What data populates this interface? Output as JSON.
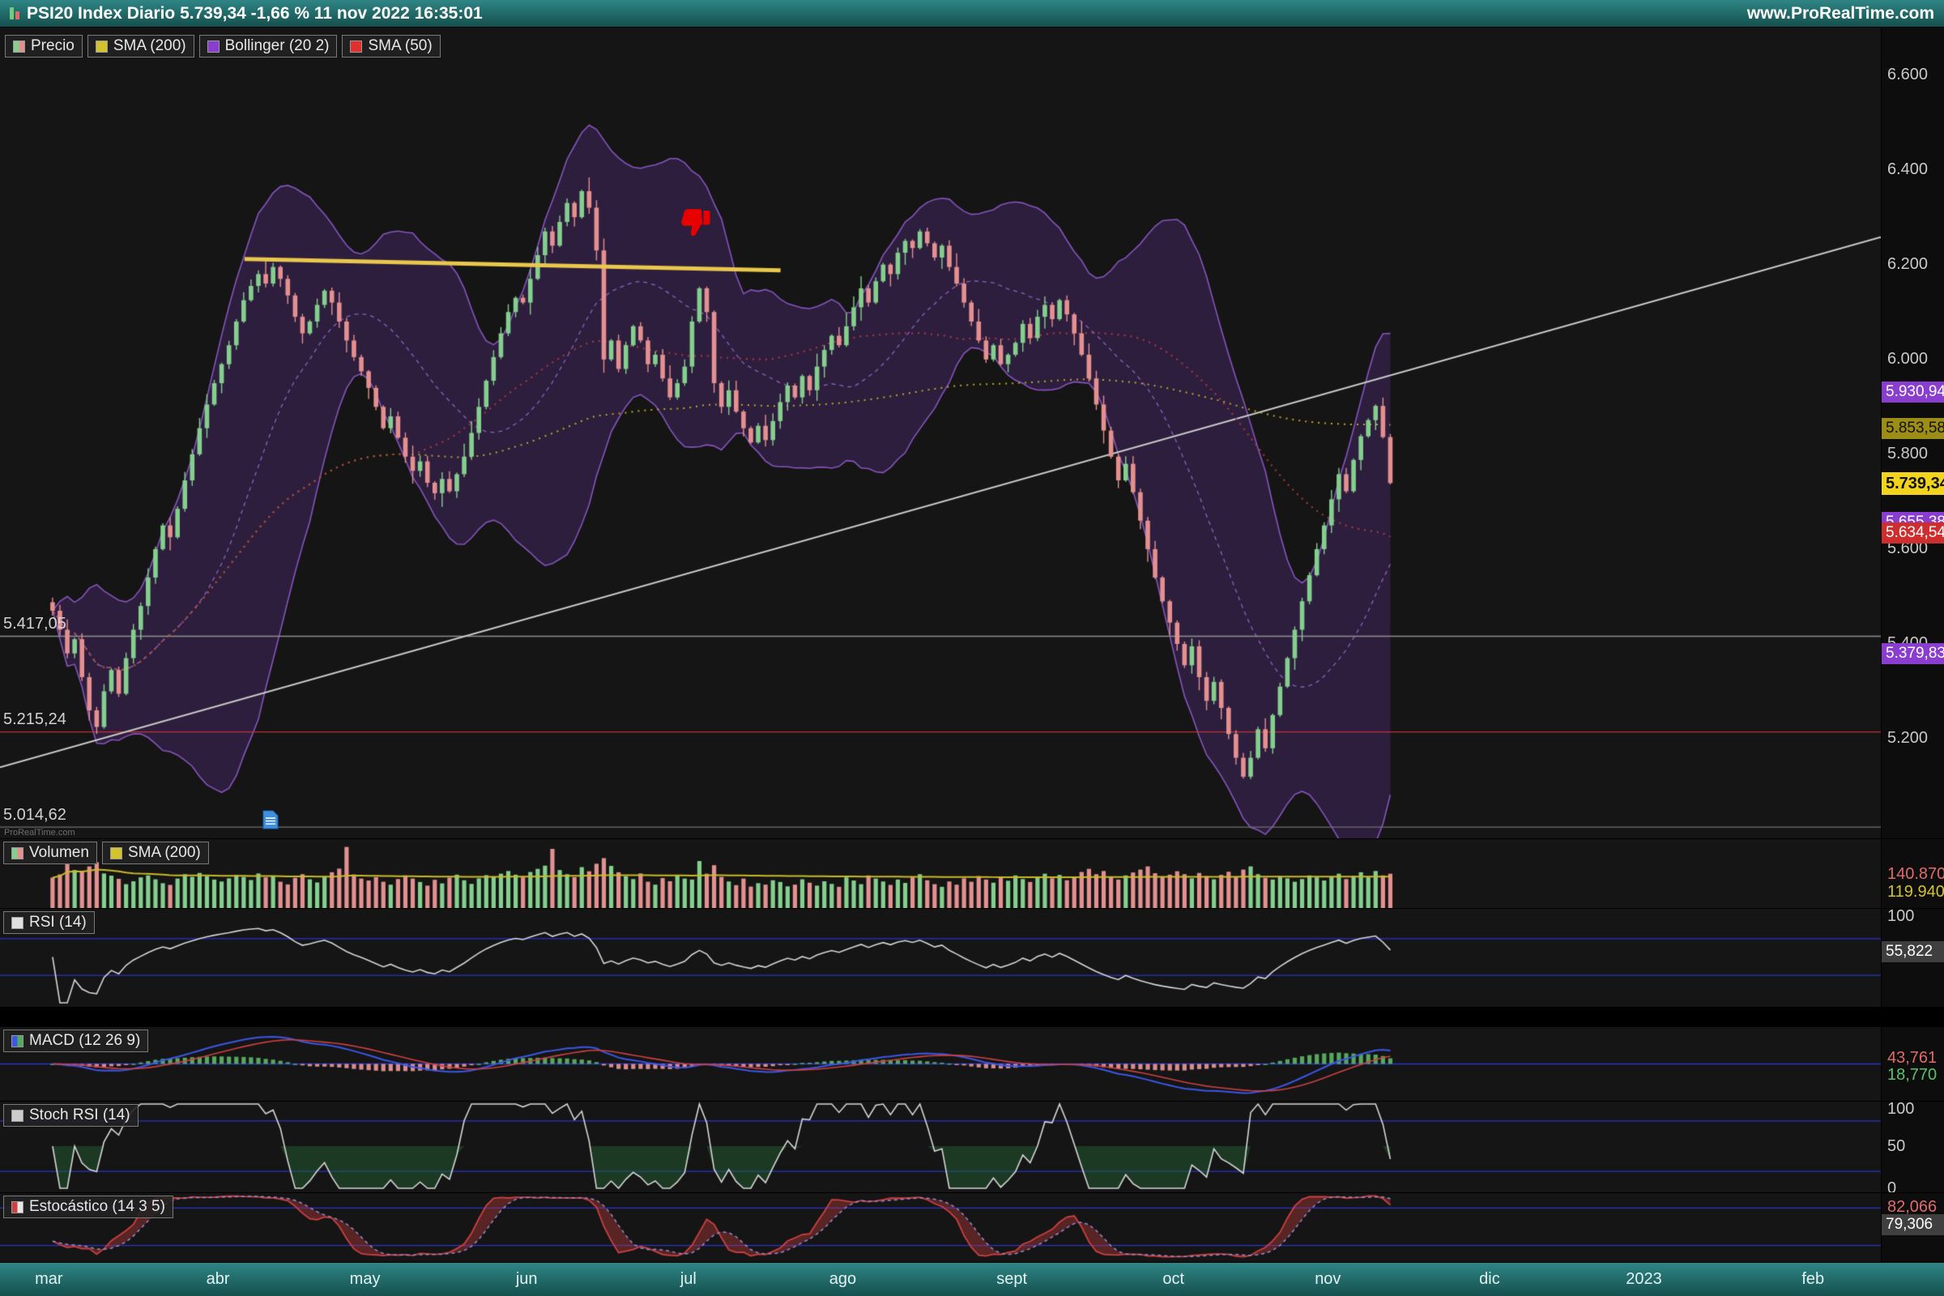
{
  "header": {
    "title": "PSI20 Index Diario 5.739,34 -1,66 % 11 nov 2022 16:35:01",
    "website": "www.ProRealTime.com"
  },
  "main": {
    "watermark": "ProRealTime.com",
    "legend": [
      {
        "label": "Precio",
        "sw": [
          "#84cf8e",
          "#e49090"
        ]
      },
      {
        "label": "SMA (200)",
        "sw": [
          "#d3c32e"
        ]
      },
      {
        "label": "Bollinger (20 2)",
        "sw": [
          "#8a3ecf"
        ]
      },
      {
        "label": "SMA (50)",
        "sw": [
          "#e03030"
        ]
      }
    ],
    "y_ticks": [
      {
        "t": "6.600",
        "v": 6600
      },
      {
        "t": "6.400",
        "v": 6400
      },
      {
        "t": "6.200",
        "v": 6200
      },
      {
        "t": "6.000",
        "v": 6000
      },
      {
        "t": "5.800",
        "v": 5800
      },
      {
        "t": "5.600",
        "v": 5600
      },
      {
        "t": "5.400",
        "v": 5400
      },
      {
        "t": "5.200",
        "v": 5200
      }
    ],
    "badges": [
      {
        "t": "5.930,94",
        "v": 5930.94,
        "bg": "#8a3ecf",
        "fg": "#ffffff"
      },
      {
        "t": "5.853,58",
        "v": 5853.58,
        "bg": "#9c8d17",
        "fg": "#101010"
      },
      {
        "t": "5.739,34",
        "v": 5739.34,
        "bg": "#f2d41c",
        "fg": "#101010",
        "big": true
      },
      {
        "t": "5.655,38",
        "v": 5655.38,
        "bg": "#8a3ecf",
        "fg": "#ffffff"
      },
      {
        "t": "5.634,54",
        "v": 5634.54,
        "bg": "#cf2e2e",
        "fg": "#ffffff"
      },
      {
        "t": "5.379,83",
        "v": 5379.83,
        "bg": "#8a3ecf",
        "fg": "#ffffff"
      }
    ],
    "level_lines": [
      {
        "t": "5.417,05",
        "v": 5417.05,
        "line": "#8f8f8f"
      },
      {
        "t": "5.215,24",
        "v": 5215.24,
        "line": "#c23232"
      },
      {
        "t": "5.014,62",
        "v": 5014.62,
        "line": "#707070"
      }
    ],
    "trendlines": [
      {
        "f1": 0.0,
        "p1": 5140,
        "f2": 1.0,
        "p2": 6258,
        "color": "#c9cdc9",
        "w": 2,
        "front": false
      },
      {
        "f1": 0.13,
        "p1": 6212,
        "f2": 0.415,
        "p2": 6188,
        "color": "#e9c84d",
        "w": 5,
        "front": true
      }
    ],
    "thumbs_down": {
      "f": 0.369,
      "price": 6290
    },
    "note_icon": {
      "f": 0.144,
      "price": 5030
    }
  },
  "panels": {
    "volume": {
      "legend": [
        {
          "label": "Volumen",
          "sw": [
            "#84cf8e",
            "#e49090"
          ]
        },
        {
          "label": "SMA (200)",
          "sw": [
            "#d3c32e"
          ]
        }
      ],
      "ylim": [
        0,
        263000
      ],
      "labels": [
        {
          "t": "140.870",
          "v": 140870,
          "color": "#e06b6b"
        },
        {
          "t": "119.940",
          "v": 119940,
          "color": "#d3c32e"
        }
      ]
    },
    "rsi": {
      "legend": [
        {
          "label": "RSI (14)",
          "sw": [
            "#e0e0e0"
          ]
        }
      ],
      "levels": [
        30,
        70
      ],
      "ticks": [
        {
          "t": "100",
          "v": 100
        }
      ],
      "badge": {
        "t": "55,822",
        "v": 55.822
      }
    },
    "macd": {
      "legend": [
        {
          "label": "MACD (12 26 9)",
          "sw": [
            "#3a57e8",
            "#56a85c"
          ]
        }
      ],
      "labels": [
        {
          "t": "43,761",
          "v": 43.761,
          "color": "#e06b6b"
        },
        {
          "t": "18,770",
          "v": 18.77,
          "color": "#56c46a"
        }
      ]
    },
    "stoch_rsi": {
      "legend": [
        {
          "label": "Stoch RSI (14)",
          "sw": [
            "#cccccc"
          ]
        }
      ],
      "levels": [
        20,
        80
      ],
      "ticks": [
        {
          "t": "100",
          "v": 100
        },
        {
          "t": "50",
          "v": 50
        },
        {
          "t": "0",
          "v": 0
        }
      ]
    },
    "stochastic": {
      "legend": [
        {
          "label": "Estocástico (14 3 5)",
          "sw": [
            "#cf4040",
            "#e8e8e8"
          ]
        }
      ],
      "levels": [
        20,
        80
      ],
      "labels": [
        {
          "t": "82,066",
          "v": 82.066,
          "color": "#e06b6b"
        }
      ],
      "badge": {
        "t": "79,306",
        "v": 79.306
      }
    }
  },
  "time_axis": {
    "months": [
      {
        "label": "mar",
        "day": 0
      },
      {
        "label": "abr",
        "day": 23
      },
      {
        "label": "may",
        "day": 43
      },
      {
        "label": "jun",
        "day": 65
      },
      {
        "label": "jul",
        "day": 87
      },
      {
        "label": "ago",
        "day": 108
      },
      {
        "label": "sept",
        "day": 131
      },
      {
        "label": "oct",
        "day": 153
      },
      {
        "label": "nov",
        "day": 174
      },
      {
        "label": "dic",
        "day": 196
      },
      {
        "label": "2023",
        "day": 217
      },
      {
        "label": "feb",
        "day": 240
      }
    ]
  },
  "colors": {
    "panel_bg": "#151515",
    "header_teal": "#1e6a68",
    "up": "#84cf8e",
    "down": "#e49090",
    "boll_fill": "rgba(88,46,130,0.38)",
    "boll_edge": "rgba(150,95,215,0.85)",
    "boll_mid": "rgba(165,115,225,0.8)",
    "sma200": "#bba821",
    "sma50": "#b23b3b",
    "vol_sma": "#c9b92a",
    "rsi_line": "#d6d6d6",
    "level_blue": "#2a35c8",
    "macd_line": "#3a57e8",
    "macd_signal": "#cf4040",
    "hist_up": "#56a85c",
    "hist_dn": "#d98c8c",
    "stoch_line": "#d6d6d6",
    "srsi_fill": "rgba(35,95,50,0.5)",
    "sto_k": "#cf4040",
    "sto_d": "#9090d8",
    "sto_fill": "rgba(190,60,60,0.4)",
    "badge_gray": "#3f3f3f"
  },
  "chart_data": {
    "type": "candlestick",
    "title": "PSI20 Index Diario",
    "last_price": "5.739,34",
    "change_pct": "-1,66 %",
    "timestamp": "11 nov 2022 16:35:01",
    "ylim": [
      4990,
      6700
    ],
    "wick_seed": 11,
    "indicators": [
      "SMA (200)",
      "Bollinger (20 2)",
      "SMA (50)",
      "Volumen",
      "RSI (14)",
      "MACD (12 26 9)",
      "Stoch RSI (14)",
      "Estocástico (14 3 5)"
    ],
    "closes": [
      5470,
      5430,
      5380,
      5410,
      5330,
      5260,
      5225,
      5300,
      5345,
      5295,
      5370,
      5430,
      5480,
      5540,
      5600,
      5650,
      5625,
      5685,
      5745,
      5800,
      5855,
      5905,
      5950,
      5990,
      6030,
      6080,
      6125,
      6155,
      6180,
      6160,
      6195,
      6170,
      6135,
      6090,
      6055,
      6080,
      6115,
      6145,
      6120,
      6080,
      6040,
      6005,
      5975,
      5940,
      5900,
      5855,
      5880,
      5835,
      5795,
      5765,
      5785,
      5740,
      5718,
      5748,
      5722,
      5758,
      5795,
      5845,
      5900,
      5955,
      6005,
      6055,
      6100,
      6130,
      6120,
      6170,
      6220,
      6270,
      6240,
      6290,
      6330,
      6300,
      6355,
      6320,
      6230,
      6000,
      6040,
      5980,
      6030,
      6070,
      6040,
      5990,
      6010,
      5960,
      5920,
      5950,
      5985,
      6080,
      6150,
      6100,
      5950,
      5900,
      5935,
      5890,
      5855,
      5825,
      5860,
      5830,
      5870,
      5910,
      5945,
      5920,
      5965,
      5935,
      5985,
      6020,
      6050,
      6030,
      6070,
      6110,
      6150,
      6120,
      6165,
      6200,
      6180,
      6225,
      6250,
      6235,
      6270,
      6245,
      6215,
      6240,
      6195,
      6160,
      6120,
      6080,
      6040,
      6000,
      6030,
      5990,
      6010,
      6035,
      6075,
      6045,
      6090,
      6115,
      6085,
      6125,
      6095,
      6055,
      6010,
      5960,
      5905,
      5850,
      5795,
      5745,
      5780,
      5720,
      5660,
      5600,
      5540,
      5490,
      5445,
      5400,
      5355,
      5395,
      5330,
      5280,
      5320,
      5265,
      5210,
      5160,
      5120,
      5160,
      5220,
      5180,
      5250,
      5310,
      5370,
      5430,
      5490,
      5545,
      5600,
      5650,
      5705,
      5758,
      5722,
      5788,
      5838,
      5872,
      5902,
      5836.3,
      5739.34
    ],
    "volumes": [
      125000,
      138000,
      182000,
      156000,
      149000,
      171000,
      188000,
      142000,
      133000,
      120000,
      98000,
      110000,
      126000,
      134000,
      118000,
      102000,
      95000,
      121000,
      139000,
      128000,
      144000,
      131000,
      117000,
      109000,
      122000,
      136000,
      128000,
      115000,
      142000,
      126000,
      133000,
      108000,
      97000,
      124000,
      139000,
      118000,
      105000,
      129000,
      147000,
      162000,
      251000,
      138000,
      121000,
      113000,
      127000,
      108000,
      96000,
      119000,
      134000,
      121000,
      107000,
      92000,
      116000,
      101000,
      125000,
      137000,
      114000,
      99000,
      122000,
      135000,
      128000,
      141000,
      152000,
      137000,
      126000,
      148000,
      161000,
      174000,
      243000,
      156000,
      139000,
      127000,
      168000,
      151000,
      182000,
      205000,
      173000,
      147000,
      131000,
      119000,
      142000,
      108000,
      96000,
      123000,
      110000,
      134000,
      121000,
      117000,
      193000,
      141000,
      176000,
      128000,
      109000,
      94000,
      121000,
      88000,
      102000,
      96000,
      114000,
      107000,
      89000,
      96000,
      118000,
      104000,
      92000,
      110000,
      99000,
      87000,
      126000,
      113000,
      98000,
      134000,
      121000,
      109000,
      95000,
      117000,
      103000,
      126000,
      139000,
      114000,
      98000,
      87000,
      109000,
      96000,
      122000,
      108000,
      131000,
      117000,
      104000,
      126000,
      112000,
      134000,
      119000,
      107000,
      128000,
      141000,
      122000,
      136000,
      114000,
      127000,
      148000,
      161000,
      139000,
      152000,
      128000,
      117000,
      134000,
      146000,
      158000,
      171000,
      143000,
      129000,
      137000,
      151000,
      139000,
      122000,
      144000,
      131000,
      118000,
      136000,
      149000,
      127000,
      158000,
      171000,
      139000,
      124000,
      117000,
      131000,
      122000,
      108000,
      119000,
      134000,
      126000,
      113000,
      128000,
      141000,
      119000,
      132000,
      147000,
      126000,
      152000,
      134000,
      140870
    ]
  }
}
